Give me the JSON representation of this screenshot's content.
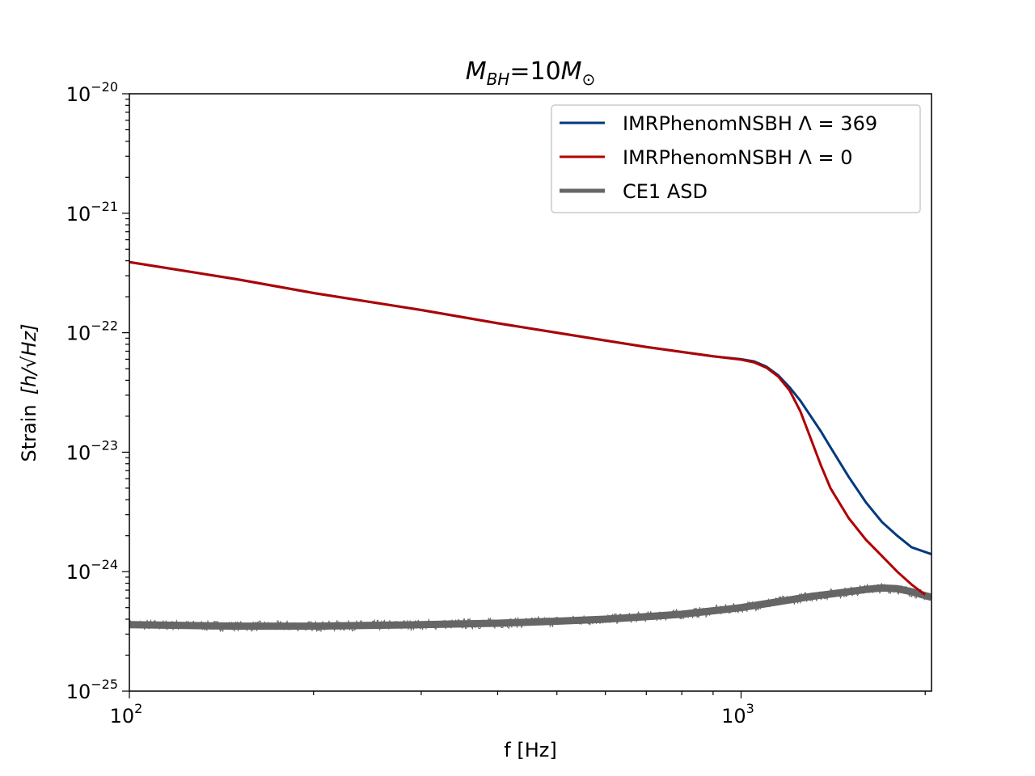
{
  "chart_data": {
    "type": "line",
    "title": {
      "lhs_base": "M",
      "lhs_sub": "BH",
      "eq": "=10",
      "rhs_base": "M",
      "rhs_sub": "⊙"
    },
    "xlabel": "f [Hz]",
    "ylabel": {
      "prefix": "Strain",
      "unit": "[h/√Hz]"
    },
    "x_scale": "log",
    "y_scale": "log",
    "xlim": [
      100,
      2048
    ],
    "ylim": [
      1e-25,
      1e-20
    ],
    "x_major_ticks": [
      {
        "value": 100,
        "base": "10",
        "exp": "2"
      },
      {
        "value": 1000,
        "base": "10",
        "exp": "3"
      }
    ],
    "y_major_ticks": [
      {
        "value": 1e-20,
        "base": "10",
        "exp": "−20"
      },
      {
        "value": 1e-21,
        "base": "10",
        "exp": "−21"
      },
      {
        "value": 1e-22,
        "base": "10",
        "exp": "−22"
      },
      {
        "value": 1e-23,
        "base": "10",
        "exp": "−23"
      },
      {
        "value": 1e-24,
        "base": "10",
        "exp": "−24"
      },
      {
        "value": 1e-25,
        "base": "10",
        "exp": "−25"
      }
    ],
    "legend_position": "top-right",
    "series": [
      {
        "name": "IMRPhenomNSBH Λ = 369",
        "color": "#003a7d",
        "x": [
          100,
          150,
          200,
          300,
          400,
          500,
          600,
          700,
          800,
          900,
          1000,
          1050,
          1100,
          1150,
          1200,
          1250,
          1300,
          1350,
          1400,
          1500,
          1600,
          1700,
          1800,
          1900,
          2048
        ],
        "y": [
          3.9e-22,
          2.8e-22,
          2.15e-22,
          1.55e-22,
          1.2e-22,
          1e-22,
          8.6e-23,
          7.6e-23,
          6.9e-23,
          6.35e-23,
          6e-23,
          5.75e-23,
          5.2e-23,
          4.4e-23,
          3.5e-23,
          2.7e-23,
          2e-23,
          1.5e-23,
          1.1e-23,
          6.2e-24,
          3.8e-24,
          2.6e-24,
          2e-24,
          1.6e-24,
          1.4e-24
        ]
      },
      {
        "name": "IMRPhenomNSBH Λ = 0",
        "color": "#b00000",
        "x": [
          100,
          150,
          200,
          300,
          400,
          500,
          600,
          700,
          800,
          900,
          1000,
          1050,
          1100,
          1150,
          1200,
          1250,
          1300,
          1350,
          1400,
          1500,
          1600,
          1700,
          1800,
          1900,
          2000
        ],
        "y": [
          3.9e-22,
          2.8e-22,
          2.15e-22,
          1.55e-22,
          1.2e-22,
          1e-22,
          8.6e-23,
          7.6e-23,
          6.9e-23,
          6.35e-23,
          5.95e-23,
          5.65e-23,
          5.1e-23,
          4.3e-23,
          3.3e-23,
          2.2e-23,
          1.3e-23,
          7.8e-24,
          5e-24,
          2.8e-24,
          1.85e-24,
          1.35e-24,
          1e-24,
          7.8e-25,
          6.4e-25
        ]
      },
      {
        "name": "CE1 ASD",
        "color": "#666666",
        "x": [
          100,
          120,
          150,
          200,
          250,
          300,
          400,
          500,
          600,
          700,
          800,
          900,
          1000,
          1100,
          1200,
          1300,
          1400,
          1500,
          1600,
          1700,
          1800,
          1900,
          2000,
          2048
        ],
        "y": [
          3.6e-25,
          3.55e-25,
          3.5e-25,
          3.5e-25,
          3.55e-25,
          3.6e-25,
          3.7e-25,
          3.85e-25,
          4e-25,
          4.2e-25,
          4.4e-25,
          4.7e-25,
          5e-25,
          5.4e-25,
          5.8e-25,
          6.2e-25,
          6.5e-25,
          6.8e-25,
          7.1e-25,
          7.3e-25,
          7.2e-25,
          6.8e-25,
          6.3e-25,
          6.1e-25
        ]
      }
    ]
  }
}
